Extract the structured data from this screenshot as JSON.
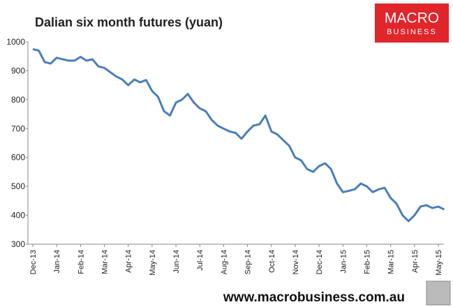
{
  "chart_data": {
    "type": "line",
    "title": "Dalian six month futures (yuan)",
    "categories": [
      "Dec-13",
      null,
      null,
      null,
      "Jan-14",
      null,
      null,
      null,
      "Feb-14",
      null,
      null,
      null,
      "Mar-14",
      null,
      null,
      null,
      "Apr-14",
      null,
      null,
      null,
      "May-14",
      null,
      null,
      null,
      "Jun-14",
      null,
      null,
      null,
      "Jul-14",
      null,
      null,
      null,
      "Aug-14",
      null,
      null,
      null,
      "Sep-14",
      null,
      null,
      null,
      "Oct-14",
      null,
      null,
      null,
      "Nov-14",
      null,
      null,
      null,
      "Dec-14",
      null,
      null,
      null,
      "Jan-15",
      null,
      null,
      null,
      "Feb-15",
      null,
      null,
      null,
      "Mar-15",
      null,
      null,
      null,
      "Apr-15",
      null,
      null,
      null,
      "May-15",
      null
    ],
    "values": [
      975,
      970,
      930,
      925,
      945,
      940,
      935,
      935,
      948,
      935,
      940,
      915,
      910,
      895,
      880,
      870,
      850,
      870,
      860,
      868,
      830,
      810,
      760,
      745,
      790,
      800,
      820,
      790,
      770,
      760,
      730,
      710,
      700,
      690,
      685,
      665,
      690,
      710,
      715,
      745,
      690,
      680,
      660,
      640,
      600,
      590,
      560,
      550,
      570,
      580,
      560,
      510,
      480,
      485,
      490,
      510,
      500,
      480,
      490,
      495,
      460,
      440,
      400,
      380,
      400,
      430,
      435,
      425,
      430,
      420
    ],
    "color": "#4a7ebb",
    "ylim": [
      300,
      1000
    ],
    "yticks": [
      300,
      400,
      500,
      600,
      700,
      800,
      900,
      1000
    ],
    "grid": false
  },
  "logo": {
    "line1": "MACRO",
    "line2": "BUSINESS"
  },
  "footer": "www.macrobusiness.com.au"
}
